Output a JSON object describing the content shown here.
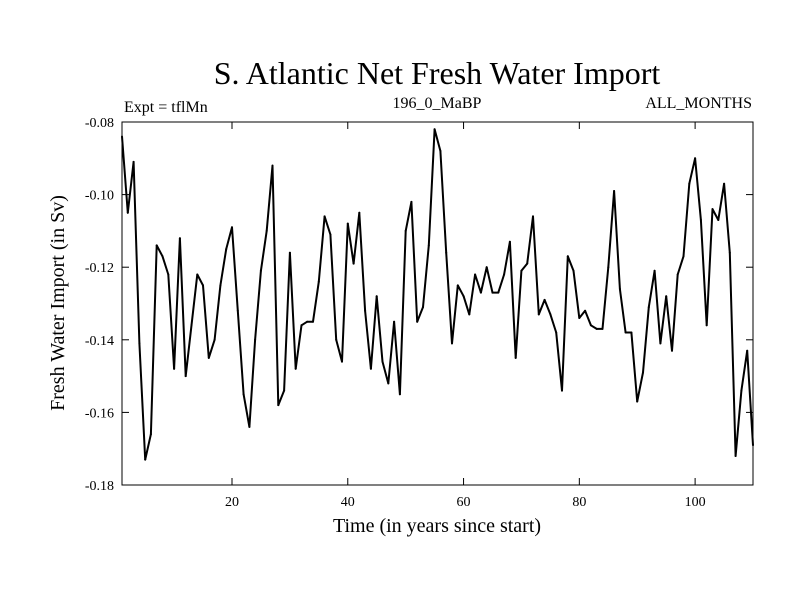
{
  "chart_data": {
    "type": "line",
    "title": "S. Atlantic Net Fresh Water Import",
    "left_subtitle": "Expt = tflMn",
    "center_subtitle": "196_0_MaBP",
    "right_subtitle": "ALL_MONTHS",
    "xlabel": "Time (in years since start)",
    "ylabel": "Fresh Water Import (in Sv)",
    "xlim": [
      1,
      110
    ],
    "ylim": [
      -0.18,
      -0.08
    ],
    "xticks": [
      20,
      40,
      60,
      80,
      100
    ],
    "yticks": [
      -0.18,
      -0.16,
      -0.14,
      -0.12,
      -0.1,
      -0.08
    ],
    "ytick_labels": [
      "-0.18",
      "-0.16",
      "-0.14",
      "-0.12",
      "-0.10",
      "-0.08"
    ],
    "x": [
      1,
      2,
      3,
      4,
      5,
      6,
      7,
      8,
      9,
      10,
      11,
      12,
      13,
      14,
      15,
      16,
      17,
      18,
      19,
      20,
      21,
      22,
      23,
      24,
      25,
      26,
      27,
      28,
      29,
      30,
      31,
      32,
      33,
      34,
      35,
      36,
      37,
      38,
      39,
      40,
      41,
      42,
      43,
      44,
      45,
      46,
      47,
      48,
      49,
      50,
      51,
      52,
      53,
      54,
      55,
      56,
      57,
      58,
      59,
      60,
      61,
      62,
      63,
      64,
      65,
      66,
      67,
      68,
      69,
      70,
      71,
      72,
      73,
      74,
      75,
      76,
      77,
      78,
      79,
      80,
      81,
      82,
      83,
      84,
      85,
      86,
      87,
      88,
      89,
      90,
      91,
      92,
      93,
      94,
      95,
      96,
      97,
      98,
      99,
      100,
      101,
      102,
      103,
      104,
      105,
      106,
      107,
      108,
      109,
      110
    ],
    "series": [
      {
        "name": "Net Fresh Water Import",
        "values": [
          -0.084,
          -0.105,
          -0.091,
          -0.141,
          -0.173,
          -0.166,
          -0.114,
          -0.117,
          -0.122,
          -0.148,
          -0.112,
          -0.15,
          -0.136,
          -0.122,
          -0.125,
          -0.145,
          -0.14,
          -0.125,
          -0.115,
          -0.109,
          -0.132,
          -0.155,
          -0.164,
          -0.14,
          -0.121,
          -0.11,
          -0.092,
          -0.158,
          -0.154,
          -0.116,
          -0.148,
          -0.136,
          -0.135,
          -0.135,
          -0.124,
          -0.106,
          -0.111,
          -0.14,
          -0.146,
          -0.108,
          -0.119,
          -0.105,
          -0.132,
          -0.148,
          -0.128,
          -0.146,
          -0.152,
          -0.135,
          -0.155,
          -0.11,
          -0.102,
          -0.135,
          -0.131,
          -0.114,
          -0.082,
          -0.088,
          -0.116,
          -0.141,
          -0.125,
          -0.128,
          -0.133,
          -0.122,
          -0.127,
          -0.12,
          -0.127,
          -0.127,
          -0.122,
          -0.113,
          -0.145,
          -0.121,
          -0.119,
          -0.106,
          -0.133,
          -0.129,
          -0.133,
          -0.138,
          -0.154,
          -0.117,
          -0.121,
          -0.134,
          -0.132,
          -0.136,
          -0.137,
          -0.137,
          -0.12,
          -0.099,
          -0.126,
          -0.138,
          -0.138,
          -0.157,
          -0.149,
          -0.131,
          -0.121,
          -0.141,
          -0.128,
          -0.143,
          -0.122,
          -0.117,
          -0.097,
          -0.09,
          -0.107,
          -0.136,
          -0.104,
          -0.107,
          -0.097,
          -0.116,
          -0.172,
          -0.154,
          -0.143,
          -0.169
        ]
      }
    ]
  }
}
